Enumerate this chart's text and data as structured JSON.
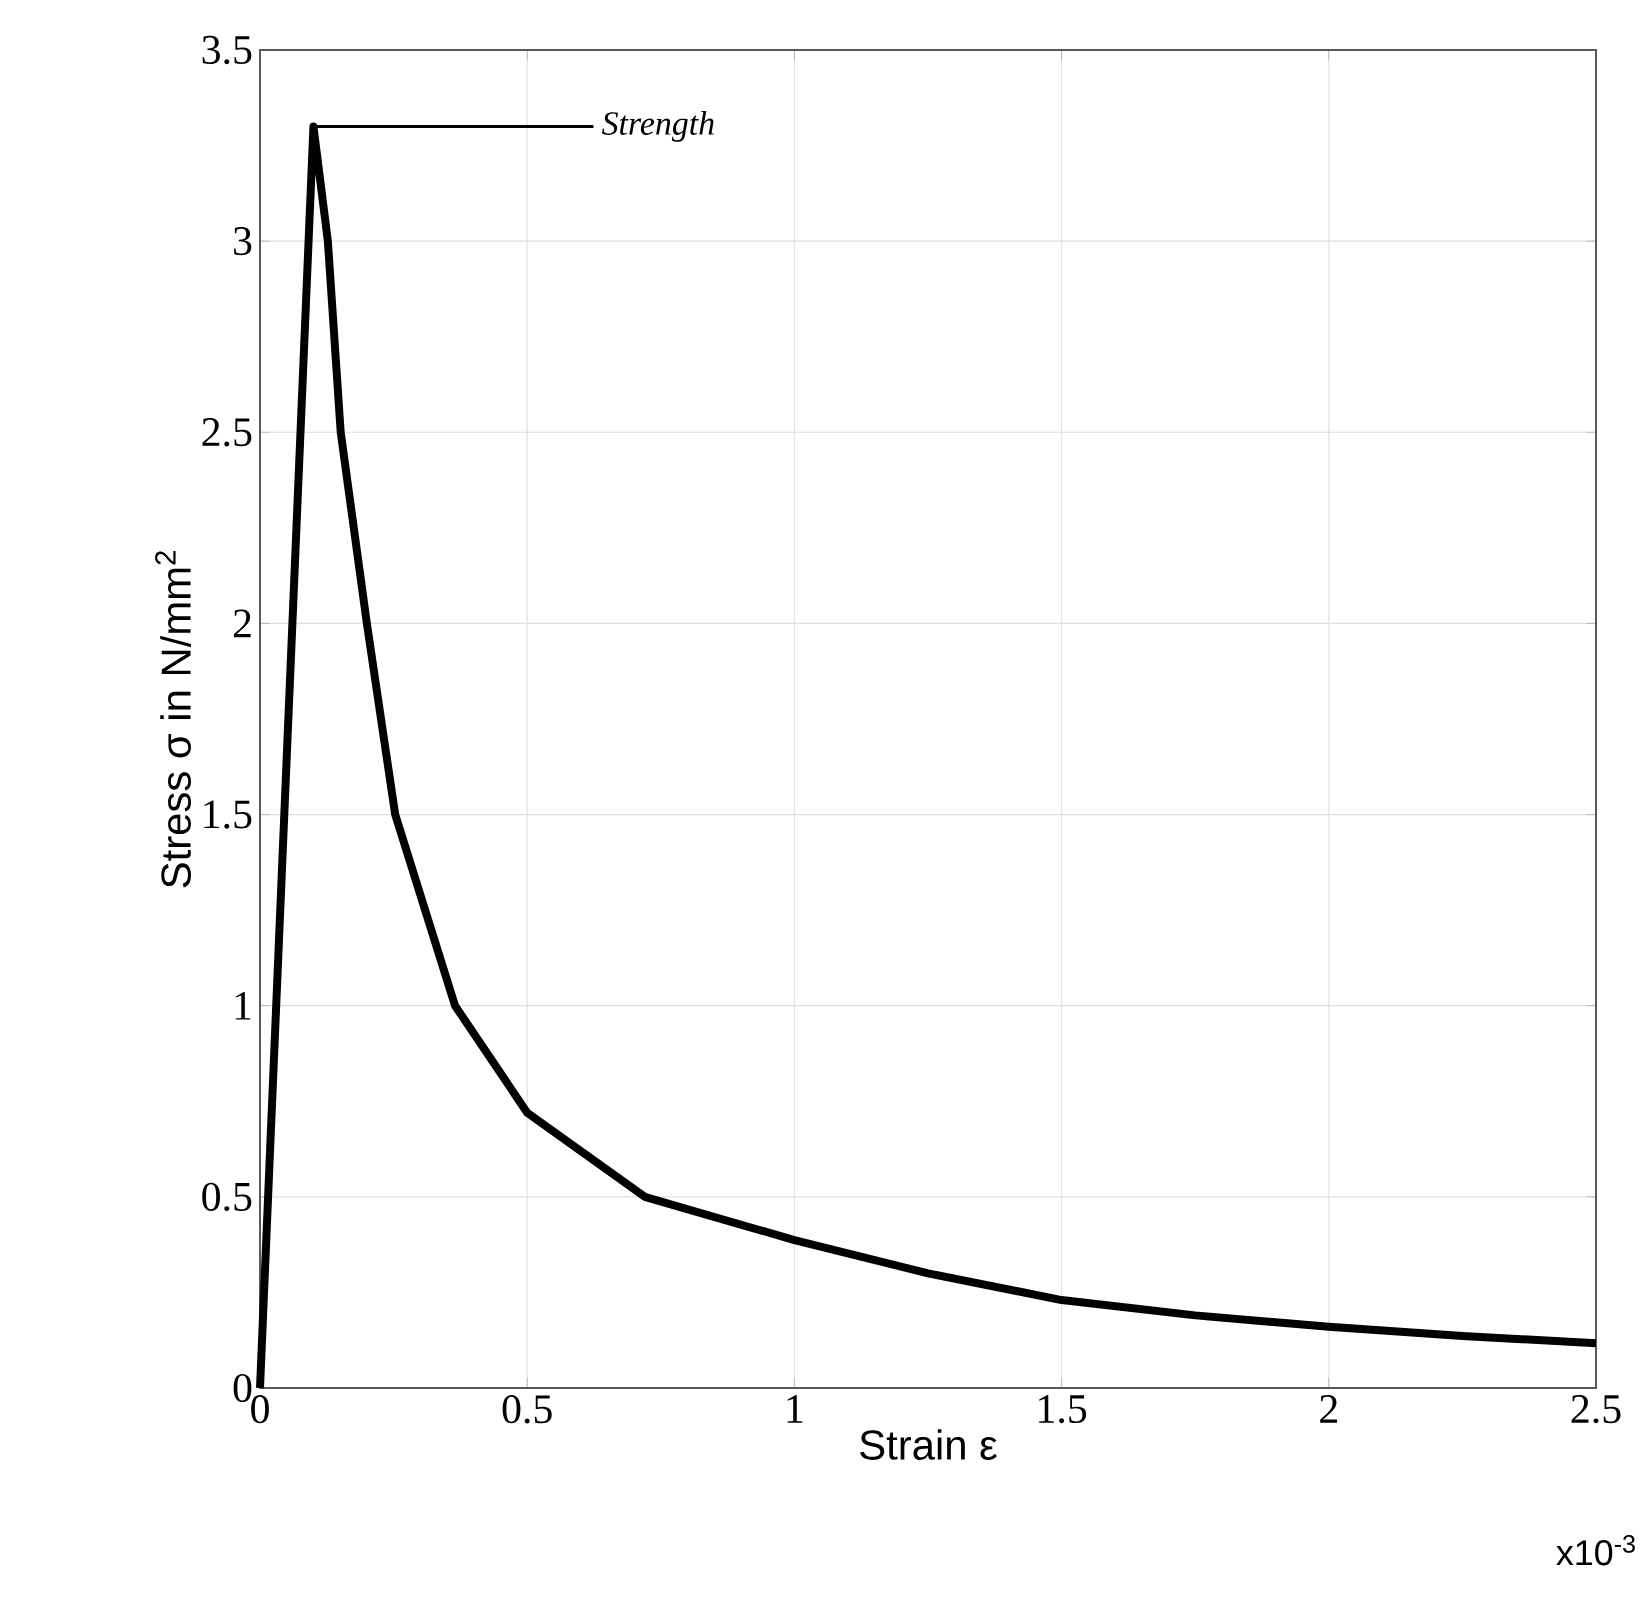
{
  "chart_data": {
    "type": "line",
    "xlabel": "Strain ε",
    "ylabel": "Stress σ  in N/mm$^{2}$",
    "x": [
      0,
      0.1,
      0.127,
      0.151,
      0.2,
      0.253,
      0.365,
      0.5,
      0.72,
      1.0,
      1.25,
      1.5,
      1.75,
      2.0,
      2.25,
      2.5
    ],
    "values": [
      0,
      3.3,
      3.0,
      2.5,
      2.0,
      1.5,
      1.0,
      0.72,
      0.5,
      0.387,
      0.3,
      0.23,
      0.19,
      0.16,
      0.136,
      0.117
    ],
    "color": "#000000",
    "xlim": [
      0,
      2.5
    ],
    "ylim": [
      0,
      3.5
    ],
    "xticks": [
      0,
      0.5,
      1,
      1.5,
      2,
      2.5
    ],
    "yticks": [
      0,
      0.5,
      1,
      1.5,
      2,
      2.5,
      3,
      3.5
    ],
    "grid": true,
    "annotations": [
      {
        "text": "*Strength*",
        "x": 0.1,
        "y": 3.3
      },
      "x10$^{-3}$"
    ]
  }
}
